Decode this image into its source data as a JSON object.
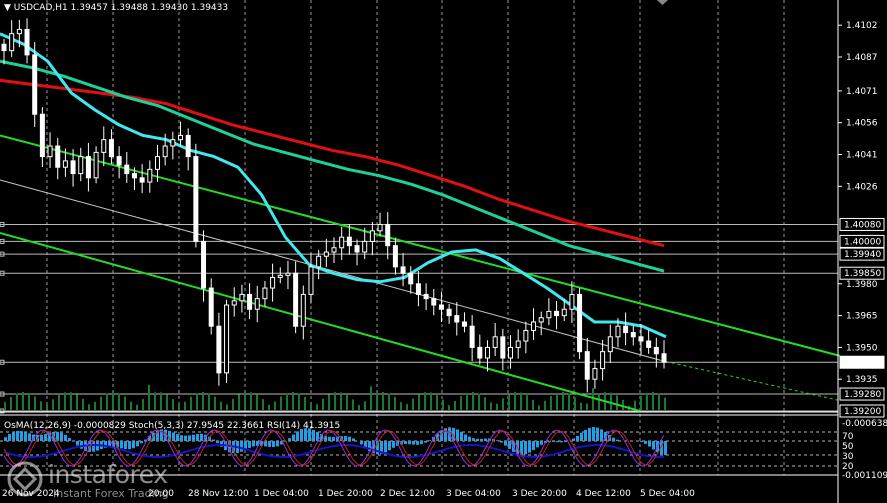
{
  "header": {
    "symbol": "USDCAD,H1",
    "ohlc": "1.39457 1.39488 1.39430 1.39433"
  },
  "indicator_header": "OsMA(12,26,9) -0.0000829  Stoch(5,3,3) 27.9545 22.3661  RSI(14) 41.3915",
  "watermark": {
    "main": "instaforex",
    "sub": "Instant Forex Trading"
  },
  "colors": {
    "background": "#000000",
    "candle": "#ffffff",
    "ema_slow": "#e01010",
    "ema_mid": "#1ed19a",
    "ema_fast": "#40e8f0",
    "channel": "#22dd22",
    "osma": "#1fa0e8",
    "rsi": "#1414c8",
    "stoch_main": "#9030d0",
    "stoch_signal": "#c02020"
  },
  "chart_data": {
    "type": "candlestick",
    "symbol": "USDCAD",
    "timeframe": "H1",
    "ylim": [
      1.392,
      1.4112
    ],
    "price_ticks": [
      1.4102,
      1.4087,
      1.4071,
      1.4056,
      1.4041,
      1.4026,
      1.398,
      1.3965,
      1.395,
      1.3935
    ],
    "level_labels": [
      1.4008,
      1.4,
      1.3994,
      1.3985,
      1.3943,
      1.3928,
      1.392
    ],
    "current_price": 1.39433,
    "x_labels": [
      "26 Nov 2024",
      "27 Nov 20:00",
      "28 Nov 12:00",
      "1 Dec 04:00",
      "1 Dec 20:00",
      "2 Dec 12:00",
      "3 Dec 04:00",
      "3 Dec 20:00",
      "4 Dec 12:00",
      "5 Dec 04:00"
    ],
    "x_label_texts": [
      "26 Nov 2024",
      "20:00",
      "28 Nov 12:00",
      "1 Dec 04:00",
      "1 Dec 20:00",
      "2 Dec 12:00",
      "3 Dec 04:00",
      "3 Dec 20:00",
      "4 Dec 12:00",
      "5 Dec 04:00"
    ],
    "close_path": [
      1.409,
      1.4098,
      1.41,
      1.4088,
      1.406,
      1.404,
      1.4045,
      1.4035,
      1.4038,
      1.4032,
      1.404,
      1.403,
      1.4042,
      1.4048,
      1.404,
      1.4036,
      1.4032,
      1.403,
      1.4028,
      1.4034,
      1.404,
      1.4045,
      1.4048,
      1.405,
      1.404,
      1.4,
      1.3978,
      1.396,
      1.3938,
      1.397,
      1.3972,
      1.3975,
      1.3968,
      1.3973,
      1.3978,
      1.3983,
      1.3984,
      1.3985,
      1.396,
      1.3975,
      1.3988,
      1.3993,
      1.3995,
      1.3997,
      1.4002,
      1.3998,
      1.3995,
      1.4,
      1.4005,
      1.4008,
      1.3998,
      1.3988,
      1.3985,
      1.398,
      1.3975,
      1.3973,
      1.397,
      1.3968,
      1.3965,
      1.3962,
      1.396,
      1.395,
      1.3945,
      1.395,
      1.3955,
      1.3945,
      1.395,
      1.3953,
      1.3958,
      1.3962,
      1.3964,
      1.3967,
      1.3965,
      1.3968,
      1.3975,
      1.3948,
      1.3935,
      1.394,
      1.3948,
      1.3955,
      1.396,
      1.3957,
      1.3955,
      1.3953,
      1.395,
      1.3947,
      1.3943
    ],
    "ema_fast": [
      1.4098,
      1.4093,
      1.4085,
      1.407,
      1.4062,
      1.4055,
      1.405,
      1.4048,
      1.4043,
      1.404,
      1.4035,
      1.4022,
      1.4002,
      1.3989,
      1.3985,
      1.3982,
      1.3981,
      1.3983,
      1.399,
      1.3995,
      1.3996,
      1.3992,
      1.3985,
      1.3978,
      1.397,
      1.3962,
      1.3962,
      1.396,
      1.3955
    ],
    "ema_mid": [
      1.4085,
      1.4082,
      1.4078,
      1.4073,
      1.4068,
      1.4064,
      1.4058,
      1.4052,
      1.4046,
      1.4042,
      1.4038,
      1.4034,
      1.4031,
      1.4027,
      1.4022,
      1.4016,
      1.401,
      1.4004,
      1.3998,
      1.3994,
      1.399,
      1.3986
    ],
    "ema_slow": [
      1.4076,
      1.4074,
      1.4072,
      1.407,
      1.4068,
      1.4065,
      1.406,
      1.4055,
      1.4051,
      1.4047,
      1.4043,
      1.404,
      1.4036,
      1.4031,
      1.4026,
      1.402,
      1.4015,
      1.401,
      1.4006,
      1.4002,
      1.3998
    ],
    "channel": {
      "upper": [
        [
          0,
          1.405
        ],
        [
          840,
          1.3946
        ]
      ],
      "middle": [
        [
          0,
          1.4029
        ],
        [
          660,
          1.3944
        ]
      ],
      "lower": [
        [
          0,
          1.4004
        ],
        [
          640,
          1.392
        ]
      ]
    }
  }
}
